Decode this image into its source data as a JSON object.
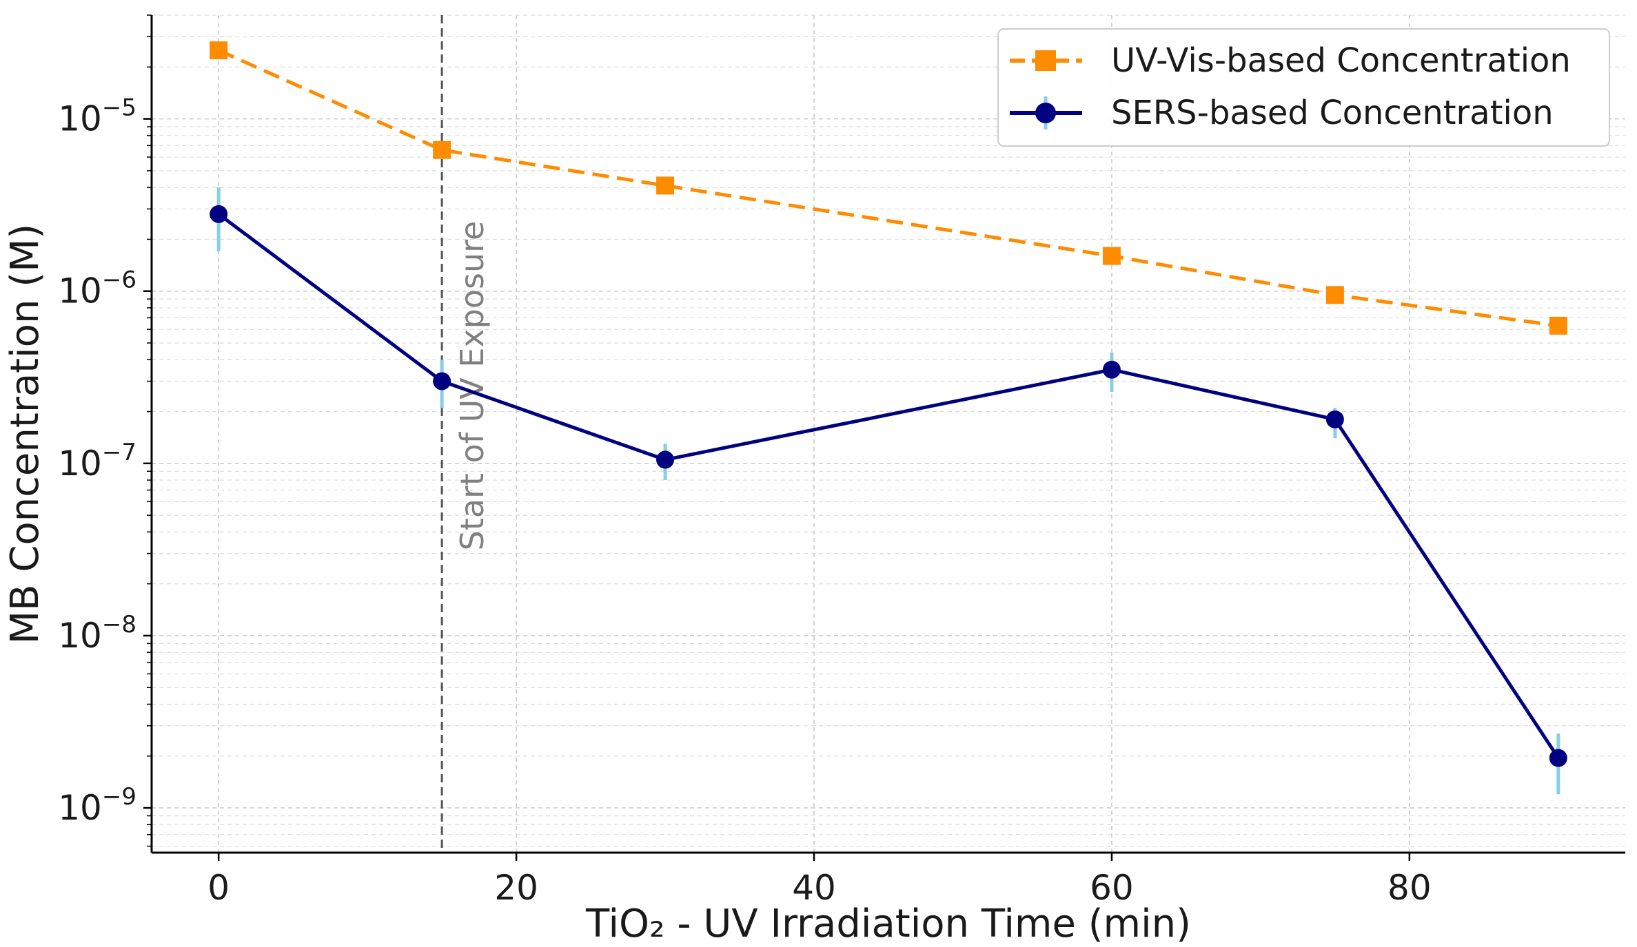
{
  "chart_data": {
    "type": "line",
    "yscale": "log",
    "xlabel": "TiO₂ - UV Irradiation Time (min)",
    "ylabel": "MB Concentration (M)",
    "xlim": [
      -4.5,
      94.5
    ],
    "ylim": [
      5.5e-10,
      4e-05
    ],
    "x_ticks": [
      0,
      20,
      40,
      60,
      80
    ],
    "y_ticks": [
      {
        "value": 1e-09,
        "base": "10",
        "exp": "−9"
      },
      {
        "value": 1e-08,
        "base": "10",
        "exp": "−8"
      },
      {
        "value": 1e-07,
        "base": "10",
        "exp": "−7"
      },
      {
        "value": 1e-06,
        "base": "10",
        "exp": "−6"
      },
      {
        "value": 1e-05,
        "base": "10",
        "exp": "−5"
      }
    ],
    "grid": true,
    "legend_position": "top-right",
    "series": [
      {
        "name": "UV-Vis-based Concentration",
        "color": "#ff8c00",
        "linestyle": "dashed",
        "marker": "square",
        "x": [
          0,
          15,
          30,
          60,
          75,
          90
        ],
        "y": [
          2.5e-05,
          6.6e-06,
          4.1e-06,
          1.6e-06,
          9.5e-07,
          6.3e-07
        ]
      },
      {
        "name": "SERS-based Concentration",
        "color": "#000080",
        "errorbar_color": "#87ceeb",
        "linestyle": "solid",
        "marker": "circle",
        "x": [
          0,
          15,
          30,
          60,
          75,
          90
        ],
        "y": [
          2.8e-06,
          3e-07,
          1.05e-07,
          3.5e-07,
          1.8e-07,
          1.95e-09
        ],
        "y_err_low": [
          1.7e-06,
          2.1e-07,
          8e-08,
          2.6e-07,
          1.4e-07,
          1.2e-09
        ],
        "y_err_high": [
          4e-06,
          4e-07,
          1.3e-07,
          4.4e-07,
          2.1e-07,
          2.7e-09
        ]
      }
    ],
    "annotations": [
      {
        "type": "vline",
        "x": 15,
        "color": "#555555",
        "linestyle": "dashed",
        "text": "Start of UV Exposure"
      }
    ]
  }
}
